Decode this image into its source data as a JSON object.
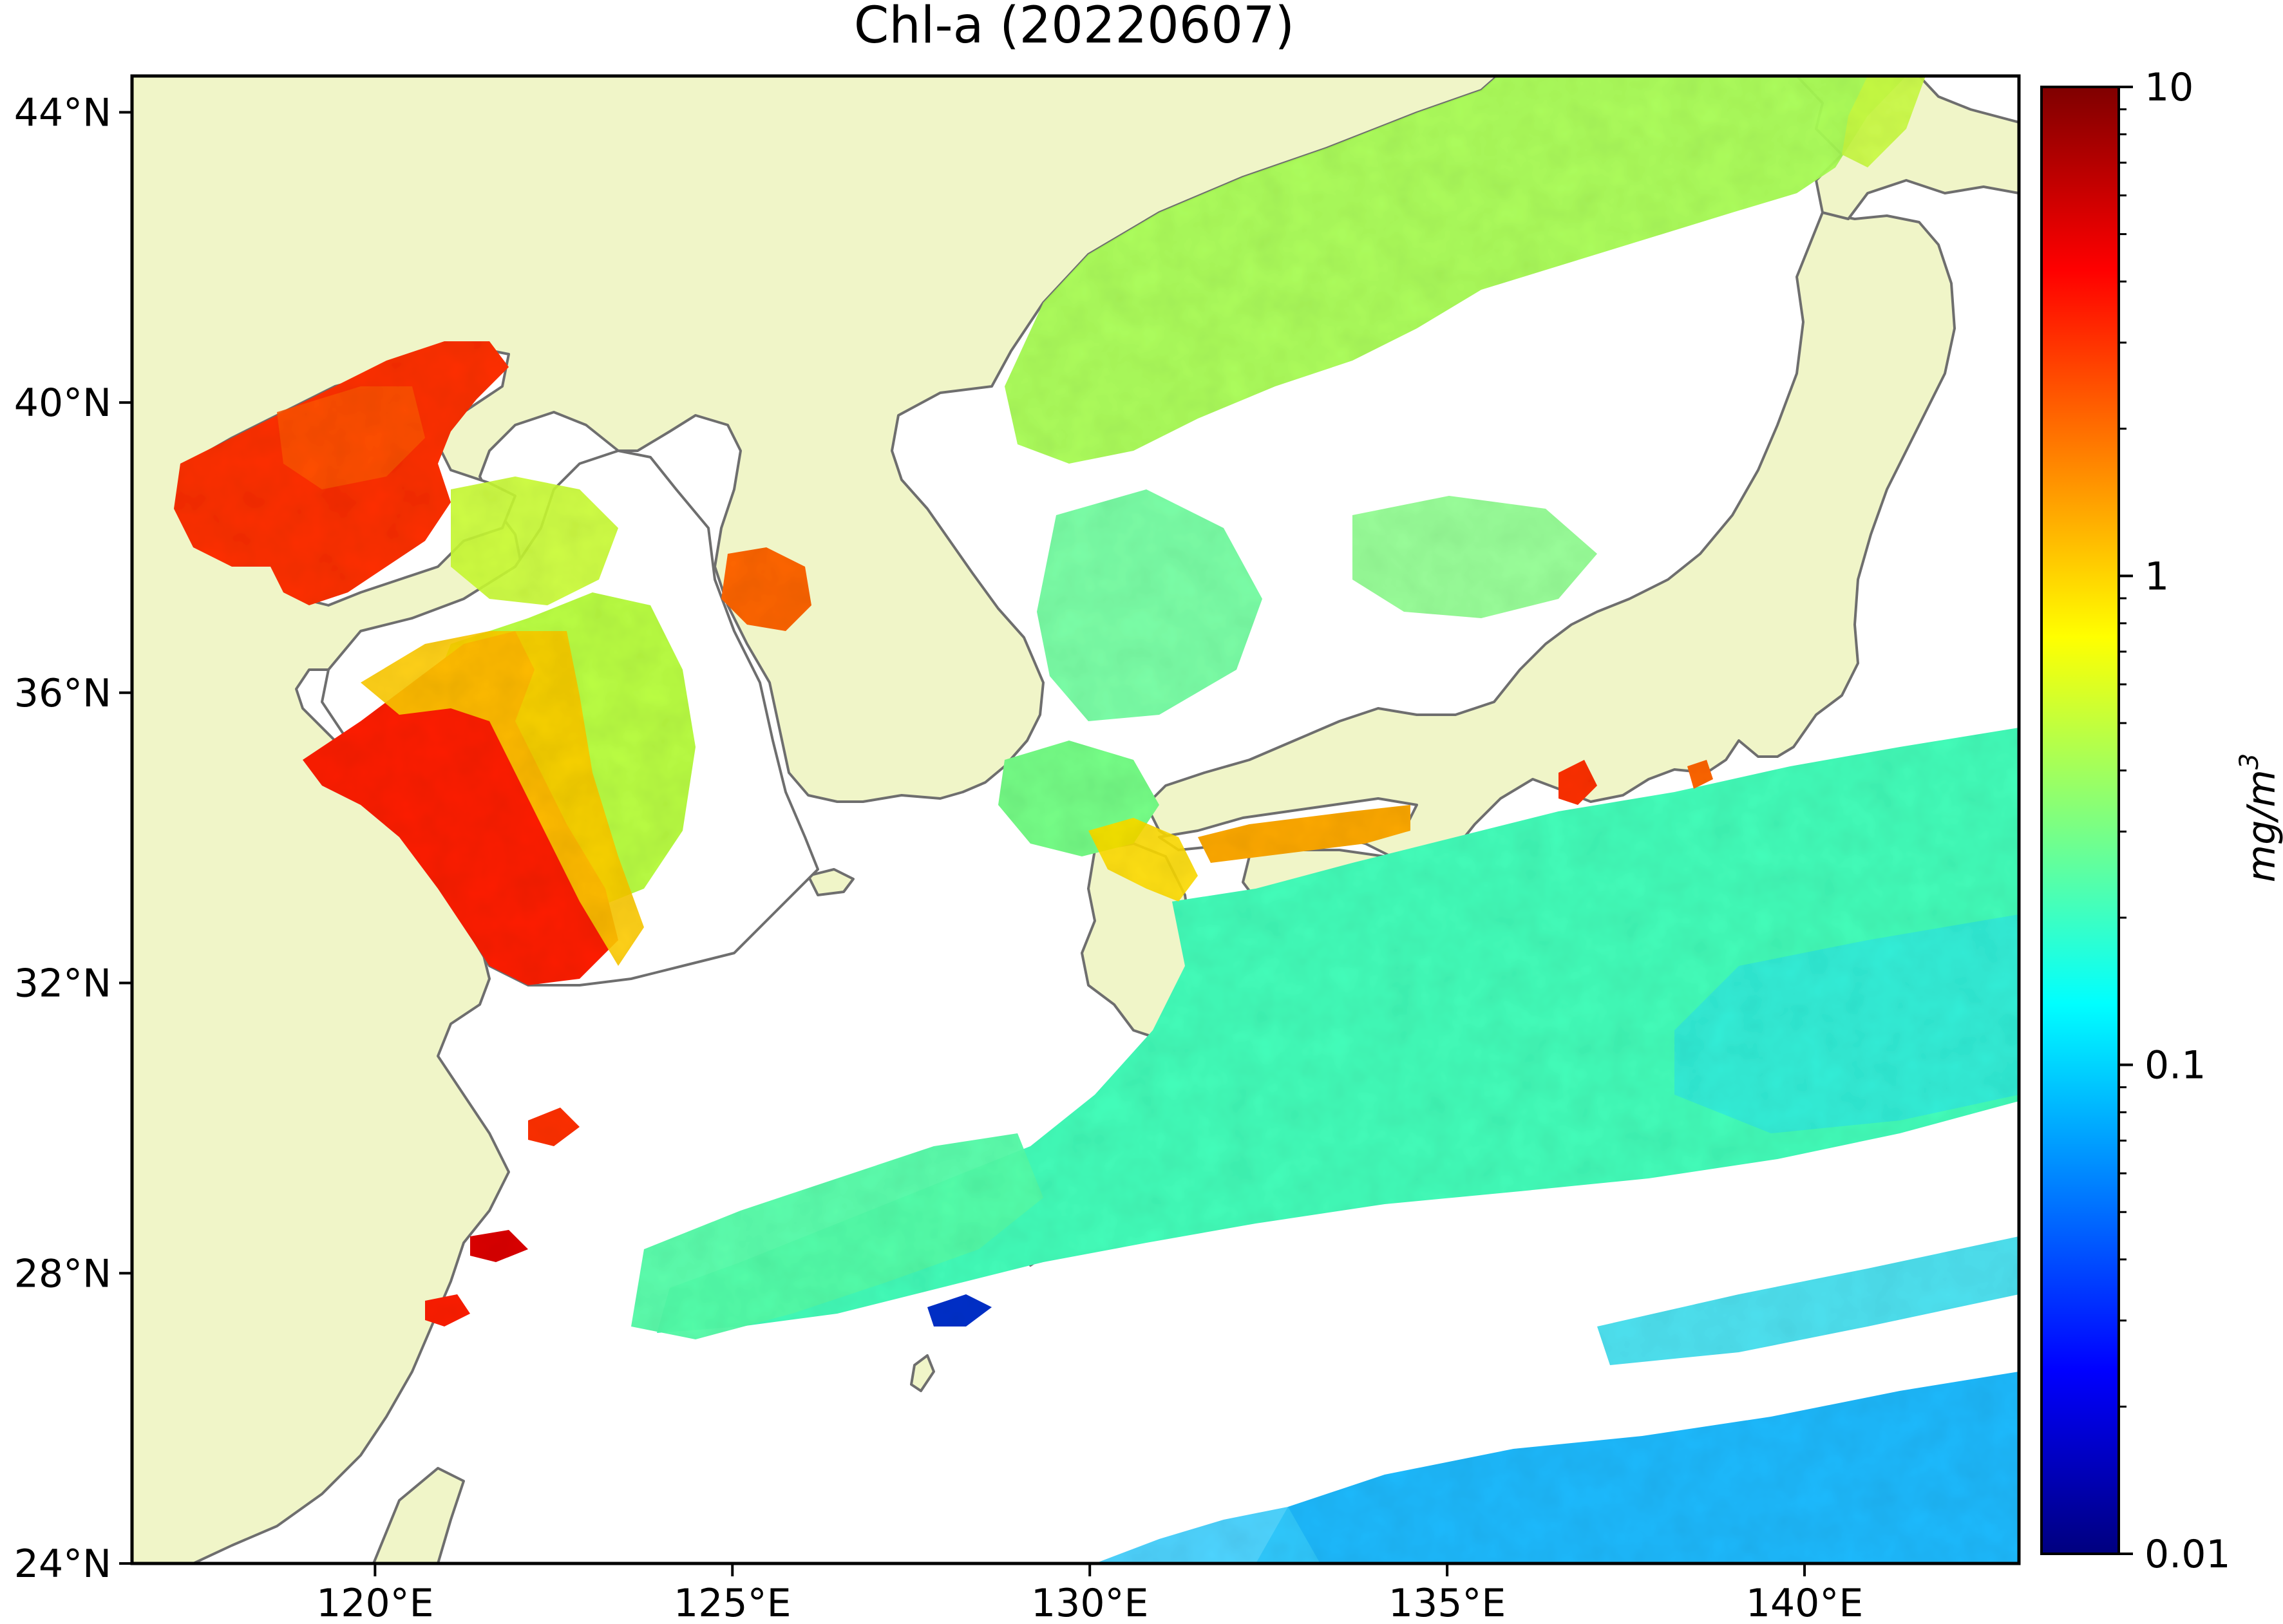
{
  "title": "Chl-a (20220607)",
  "colorbar": {
    "label": "mg/m",
    "label_superscript": "3",
    "scale": "log",
    "range": [
      0.01,
      10
    ],
    "ticks": [
      {
        "value": 10,
        "label": "10"
      },
      {
        "value": 1,
        "label": "1"
      },
      {
        "value": 0.1,
        "label": "0.1"
      },
      {
        "value": 0.01,
        "label": "0.01"
      }
    ],
    "colors": [
      "#00007f",
      "#0000ff",
      "#007fff",
      "#00ffff",
      "#7fff7f",
      "#ffff00",
      "#ff7f00",
      "#ff0000",
      "#7f0000"
    ]
  },
  "map": {
    "lon_range": [
      116.6,
      143.0
    ],
    "lat_range": [
      24,
      44.5
    ],
    "x_ticks": [
      {
        "value": 120,
        "label": "120°E"
      },
      {
        "value": 125,
        "label": "125°E"
      },
      {
        "value": 130,
        "label": "130°E"
      },
      {
        "value": 135,
        "label": "135°E"
      },
      {
        "value": 140,
        "label": "140°E"
      }
    ],
    "y_ticks": [
      {
        "value": 24,
        "label": "24°N"
      },
      {
        "value": 28,
        "label": "28°N"
      },
      {
        "value": 32,
        "label": "32°N"
      },
      {
        "value": 36,
        "label": "36°N"
      },
      {
        "value": 40,
        "label": "40°N"
      },
      {
        "value": 44,
        "label": "44°N"
      }
    ],
    "colors": {
      "land": "#f0f5c8",
      "coastline": "#6e6e6e",
      "no_data": "#ffffff"
    }
  }
}
